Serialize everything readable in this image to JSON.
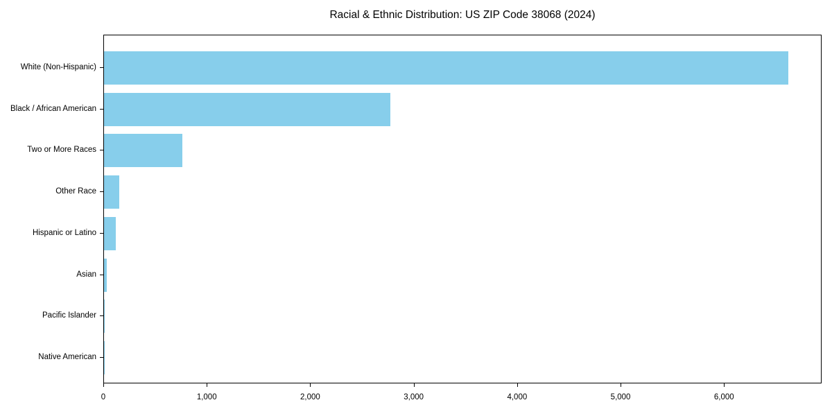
{
  "chart_data": {
    "type": "bar",
    "orientation": "horizontal",
    "title": "Racial & Ethnic Distribution: US ZIP Code 38068 (2024)",
    "categories": [
      "White (Non-Hispanic)",
      "Black / African American",
      "Two or More Races",
      "Other Race",
      "Hispanic or Latino",
      "Asian",
      "Pacific Islander",
      "Native American"
    ],
    "values": [
      6612,
      2768,
      755,
      147,
      114,
      27,
      6,
      3
    ],
    "xlabel": "",
    "ylabel": "",
    "xlim": [
      0,
      6943
    ],
    "xticks": [
      0,
      1000,
      2000,
      3000,
      4000,
      5000,
      6000
    ],
    "xtick_labels": [
      "0",
      "1,000",
      "2,000",
      "3,000",
      "4,000",
      "5,000",
      "6,000"
    ],
    "bar_color": "#87CEEB",
    "text_color": "#000000",
    "background_color": "#FFFFFF",
    "grid": false,
    "legend": null
  }
}
